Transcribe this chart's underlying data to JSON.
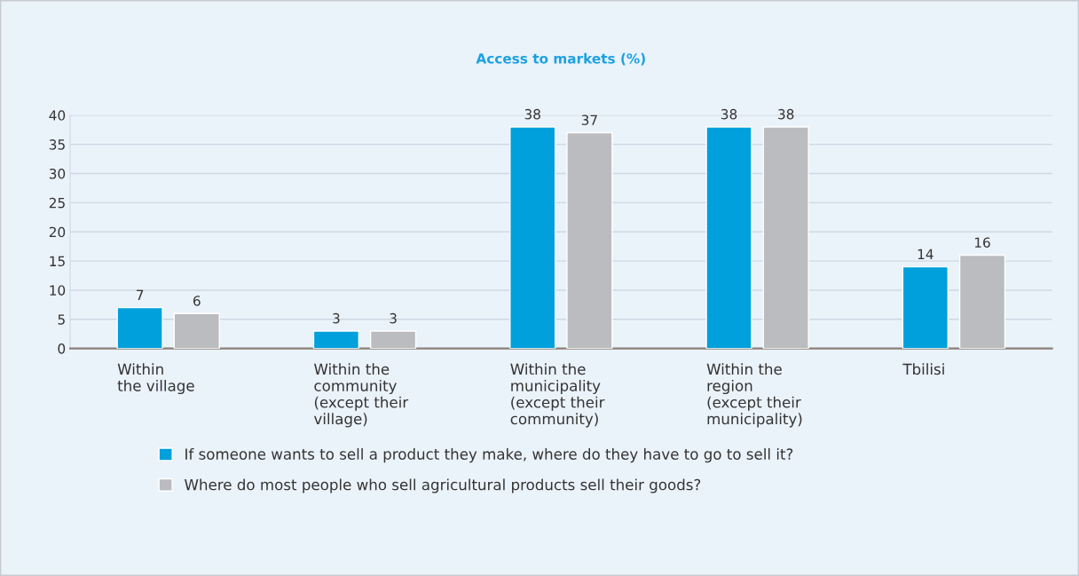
{
  "chart_data": {
    "type": "bar",
    "title": "Access to markets (%)",
    "categories": [
      "Within\nthe village",
      "Within the\ncommunity\n(except their\nvillage)",
      "Within the\nmunicipality\n(except their\ncommunity)",
      "Within the\nregion\n(except their\nmunicipality)",
      "Tbilisi"
    ],
    "series": [
      {
        "name": "If someone wants to sell a product they make, where do they have to go to sell it?",
        "color": "#00a0dc",
        "values": [
          7,
          3,
          38,
          38,
          14
        ]
      },
      {
        "name": "Where do most people who sell agricultural products sell their goods?",
        "color": "#bbbcbf",
        "values": [
          6,
          3,
          37,
          38,
          16
        ]
      }
    ],
    "ylim": [
      0,
      40
    ],
    "yticks": [
      0,
      5,
      10,
      15,
      20,
      25,
      30,
      35,
      40
    ],
    "grid": "y",
    "legend": "bottom",
    "data_labels": true
  }
}
